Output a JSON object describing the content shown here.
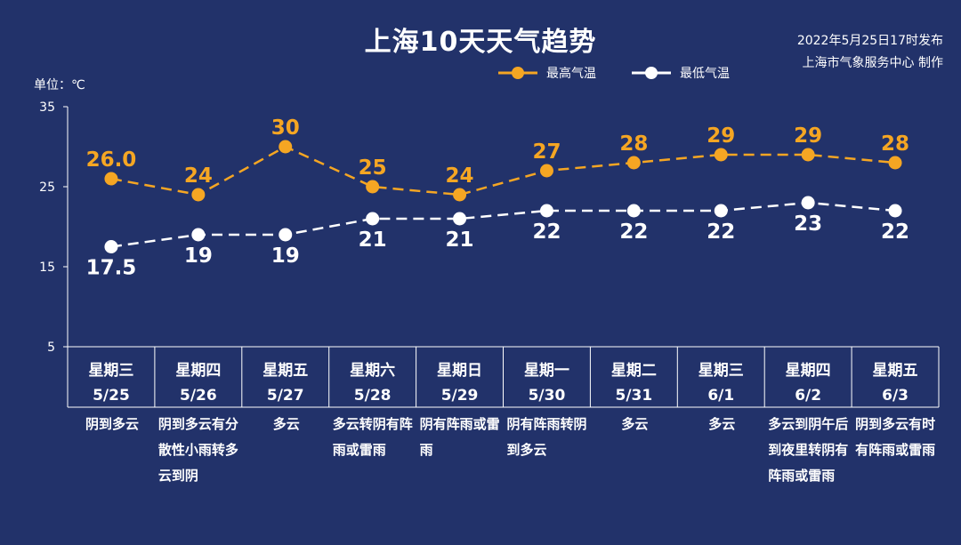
{
  "header": {
    "title": "上海10天天气趋势",
    "publish_date": "2022年5月25日17时发布",
    "publisher": "上海市气象服务中心 制作"
  },
  "unit": "单位：℃",
  "colors": {
    "background": "#22326a",
    "high": "#f5a623",
    "low": "#ffffff"
  },
  "chart_data": {
    "type": "line",
    "categories": [
      "星期三",
      "星期四",
      "星期五",
      "星期六",
      "星期日",
      "星期一",
      "星期二",
      "星期三",
      "星期四",
      "星期五"
    ],
    "dates": [
      "5/25",
      "5/26",
      "5/27",
      "5/28",
      "5/29",
      "5/30",
      "5/31",
      "6/1",
      "6/2",
      "6/3"
    ],
    "series": [
      {
        "name": "最高气温",
        "values": [
          26.0,
          24,
          30,
          25,
          24,
          27,
          28,
          29,
          29,
          28
        ],
        "labels": [
          "26.0",
          "24",
          "30",
          "25",
          "24",
          "27",
          "28",
          "29",
          "29",
          "28"
        ]
      },
      {
        "name": "最低气温",
        "values": [
          17.5,
          19,
          19,
          21,
          21,
          22,
          22,
          22,
          23,
          22
        ],
        "labels": [
          "17.5",
          "19",
          "19",
          "21",
          "21",
          "22",
          "22",
          "22",
          "23",
          "22"
        ]
      }
    ],
    "yticks": [
      "35",
      "25",
      "15",
      "5"
    ],
    "ylim": [
      5,
      35
    ],
    "grid": false,
    "legend": "top-center"
  },
  "weather": [
    "阴到多云",
    "阴到多云有分散性小雨转多云到阴",
    "多云",
    "多云转阴有阵雨或雷雨",
    "阴有阵雨或雷雨",
    "阴有阵雨转阴到多云",
    "多云",
    "多云",
    "多云到阴午后到夜里转阴有阵雨或雷雨",
    "阴到多云有时有阵雨或雷雨"
  ]
}
